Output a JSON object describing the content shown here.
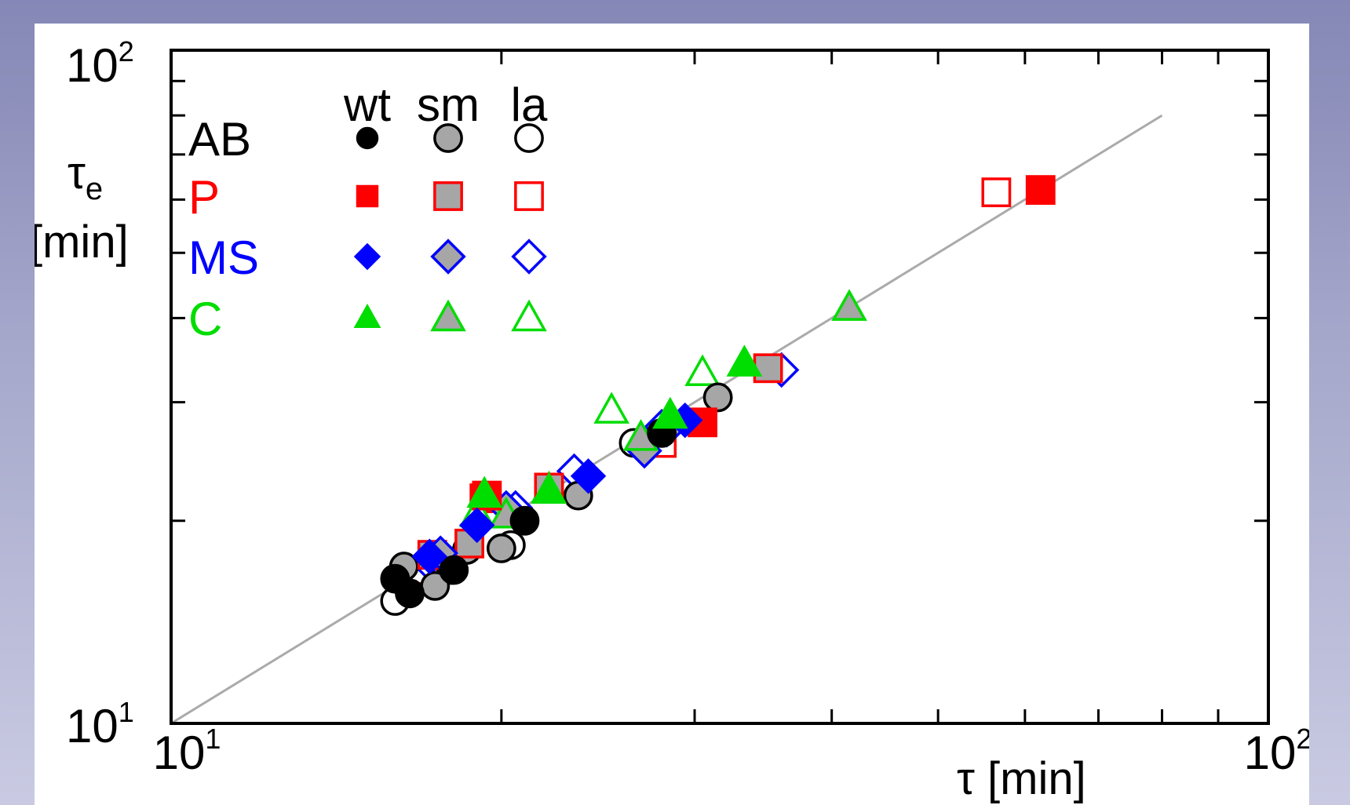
{
  "chart_data": {
    "type": "scatter",
    "scale": "log-log",
    "xlim": [
      10,
      100
    ],
    "ylim": [
      10,
      100
    ],
    "xlabel": {
      "main": "τ",
      "unit": " [min]"
    },
    "ylabel": {
      "main": "τ",
      "sub": "e",
      "unit": "[min]"
    },
    "x_ticks": [
      {
        "value": 10,
        "base": "10",
        "exp": "1"
      },
      {
        "value": 100,
        "base": "10",
        "exp": "2"
      }
    ],
    "y_ticks": [
      {
        "value": 10,
        "base": "10",
        "exp": "1"
      },
      {
        "value": 100,
        "base": "10",
        "exp": "2"
      }
    ],
    "grid": false,
    "reference_line": {
      "from": [
        10,
        10
      ],
      "to": [
        80,
        80
      ],
      "color": "#aaaaaa"
    },
    "legend": {
      "placement": "top-left",
      "column_headers": [
        "wt",
        "sm",
        "la"
      ],
      "rows": [
        {
          "label": "AB",
          "color": "#000000",
          "marker": "circle"
        },
        {
          "label": "P",
          "color": "#ff0000",
          "marker": "square"
        },
        {
          "label": "MS",
          "color": "#0000ff",
          "marker": "diamond"
        },
        {
          "label": "C",
          "color": "#00dd00",
          "marker": "triangle"
        }
      ]
    },
    "fill_styles": {
      "wt": "solid",
      "sm": "#a6a6a6",
      "la": "#ffffff"
    },
    "series": [
      {
        "group": "AB",
        "variant": "wt",
        "points": [
          [
            16.0,
            16.4
          ],
          [
            16.5,
            15.6
          ],
          [
            18.1,
            16.9
          ],
          [
            21.0,
            20.0
          ],
          [
            28.0,
            27.0
          ]
        ]
      },
      {
        "group": "AB",
        "variant": "sm",
        "points": [
          [
            16.3,
            17.1
          ],
          [
            17.4,
            16.0
          ],
          [
            18.6,
            18.1
          ],
          [
            20.0,
            18.2
          ],
          [
            23.5,
            21.8
          ],
          [
            31.5,
            30.5
          ]
        ]
      },
      {
        "group": "AB",
        "variant": "la",
        "points": [
          [
            16.0,
            15.2
          ],
          [
            18.0,
            16.9
          ],
          [
            20.4,
            18.4
          ],
          [
            26.4,
            26.1
          ]
        ]
      },
      {
        "group": "P",
        "variant": "wt",
        "points": [
          [
            19.4,
            21.8
          ],
          [
            30.5,
            28.0
          ],
          [
            62.0,
            62.0
          ]
        ]
      },
      {
        "group": "P",
        "variant": "sm",
        "points": [
          [
            17.3,
            17.8
          ],
          [
            18.7,
            18.5
          ],
          [
            22.1,
            22.4
          ],
          [
            35.0,
            33.7
          ]
        ]
      },
      {
        "group": "P",
        "variant": "la",
        "points": [
          [
            16.9,
            16.9
          ],
          [
            19.3,
            21.6
          ],
          [
            22.1,
            22.4
          ],
          [
            28.0,
            26.1
          ],
          [
            56.5,
            61.5
          ]
        ]
      },
      {
        "group": "MS",
        "variant": "wt",
        "points": [
          [
            17.2,
            17.7
          ],
          [
            19.0,
            19.7
          ],
          [
            24.0,
            23.3
          ],
          [
            29.4,
            28.2
          ]
        ]
      },
      {
        "group": "MS",
        "variant": "sm",
        "points": [
          [
            17.6,
            17.9
          ],
          [
            20.2,
            20.9
          ],
          [
            27.0,
            25.4
          ],
          [
            28.3,
            27.3
          ]
        ]
      },
      {
        "group": "MS",
        "variant": "la",
        "points": [
          [
            17.1,
            17.4
          ],
          [
            20.6,
            20.9
          ],
          [
            23.3,
            23.7
          ],
          [
            28.0,
            27.6
          ],
          [
            36.0,
            33.5
          ]
        ]
      },
      {
        "group": "C",
        "variant": "wt",
        "points": [
          [
            19.3,
            21.9
          ],
          [
            22.1,
            22.2
          ],
          [
            28.5,
            28.7
          ],
          [
            33.3,
            34.3
          ]
        ]
      },
      {
        "group": "C",
        "variant": "sm",
        "points": [
          [
            20.2,
            20.4
          ],
          [
            26.8,
            26.6
          ],
          [
            41.5,
            41.5
          ]
        ]
      },
      {
        "group": "C",
        "variant": "la",
        "points": [
          [
            19.0,
            20.5
          ],
          [
            22.1,
            22.3
          ],
          [
            25.2,
            29.2
          ],
          [
            30.5,
            33.2
          ]
        ]
      }
    ]
  }
}
